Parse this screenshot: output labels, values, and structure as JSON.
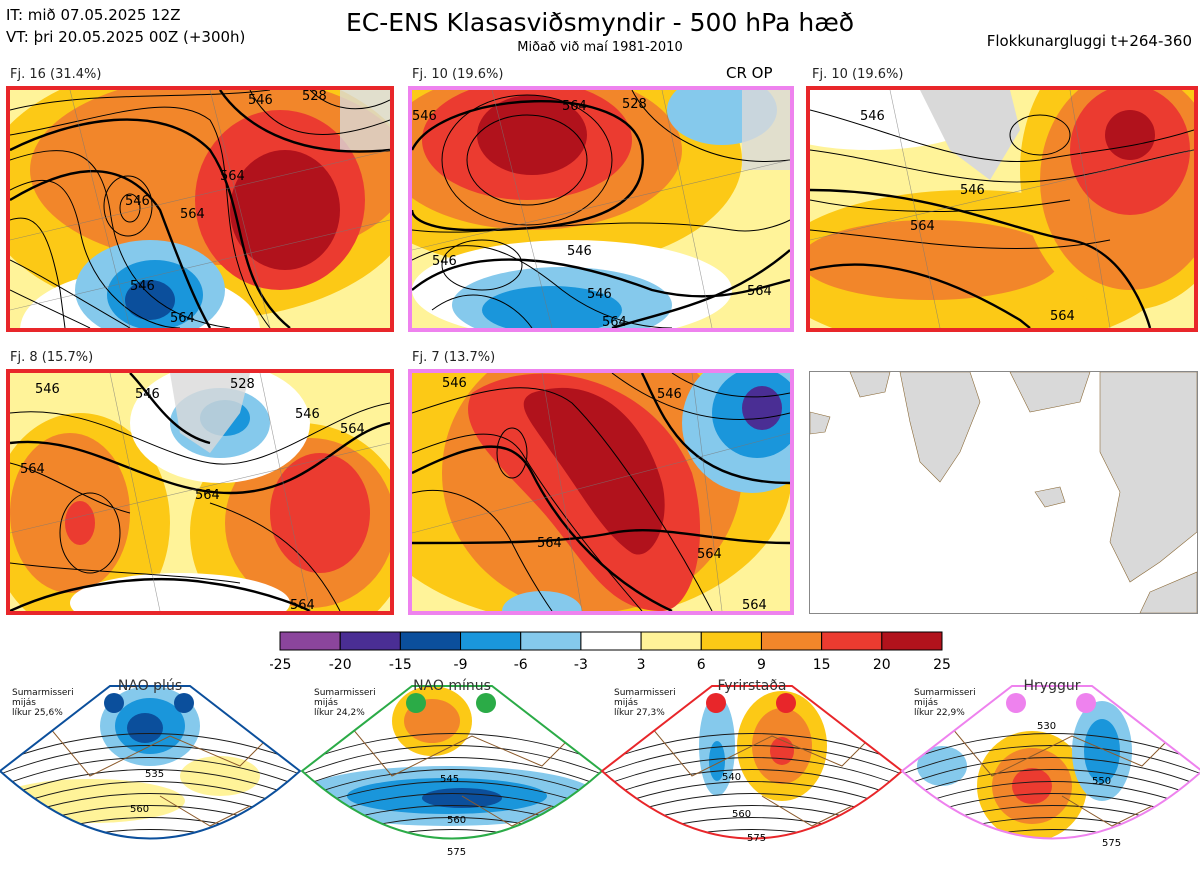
{
  "header": {
    "it_line": "IT: mið 07.05.2025 12Z",
    "vt_line": "VT: þri 20.05.2025 00Z  (+300h)",
    "title": "EC-ENS Klasasviðsmyndir - 500 hPa hæð",
    "subtitle": "Miðað við maí 1981-2010",
    "window": "Flokkunargluggi t+264-360"
  },
  "colors": {
    "red_border": "#e8262a",
    "pink_border": "#ee82ee",
    "nao_plus": "#0b4f9c",
    "nao_minus": "#2bab47",
    "blocking": "#e8262a",
    "ridge": "#ee82ee"
  },
  "panels": [
    {
      "label": "Fj. 16 (31.4%)",
      "tag": "",
      "border": "red",
      "contours": [
        "546",
        "528",
        "546",
        "564",
        "564",
        "546",
        "564"
      ]
    },
    {
      "label": "Fj. 10 (19.6%)",
      "tag": "CR OP",
      "border": "pink",
      "contours": [
        "564",
        "546",
        "528",
        "546",
        "546",
        "546",
        "564",
        "564"
      ]
    },
    {
      "label": "Fj. 10 (19.6%)",
      "tag": "",
      "border": "red",
      "contours": [
        "546",
        "546",
        "564",
        "564"
      ]
    },
    {
      "label": "Fj. 8 (15.7%)",
      "tag": "",
      "border": "red",
      "contours": [
        "546",
        "528",
        "546",
        "564",
        "564",
        "564",
        "546",
        "564"
      ]
    },
    {
      "label": "Fj. 7 (13.7%)",
      "tag": "",
      "border": "pink",
      "contours": [
        "546",
        "546",
        "564",
        "564",
        "564"
      ]
    }
  ],
  "colorbar": {
    "ticks": [
      "-25",
      "-20",
      "-15",
      "-9",
      "-6",
      "-3",
      "3",
      "6",
      "9",
      "15",
      "20",
      "25"
    ],
    "colors": [
      "#8b459c",
      "#4a2e94",
      "#0b4f9c",
      "#1a96db",
      "#85c9ec",
      "#ffffff",
      "#fff399",
      "#fcc916",
      "#f2862a",
      "#eb3b30",
      "#b1121c"
    ]
  },
  "regimes": [
    {
      "name": "NAO plús",
      "note": [
        "Sumarmisseri",
        "mijás",
        "líkur 25,6%"
      ],
      "color": "nao_plus",
      "contours": [
        "535",
        "560"
      ]
    },
    {
      "name": "NAO mínus",
      "note": [
        "Sumarmisseri",
        "mijás",
        "líkur 24,2%"
      ],
      "color": "nao_minus",
      "contours": [
        "545",
        "560",
        "575"
      ]
    },
    {
      "name": "Fyrirstaða",
      "note": [
        "Sumarmisseri",
        "mijás",
        "líkur 27,3%"
      ],
      "color": "blocking",
      "contours": [
        "540",
        "560",
        "575"
      ]
    },
    {
      "name": "Hryggur",
      "note": [
        "Sumarmisseri",
        "mijás",
        "líkur 22,9%"
      ],
      "color": "ridge",
      "contours": [
        "530",
        "550",
        "575"
      ]
    }
  ]
}
